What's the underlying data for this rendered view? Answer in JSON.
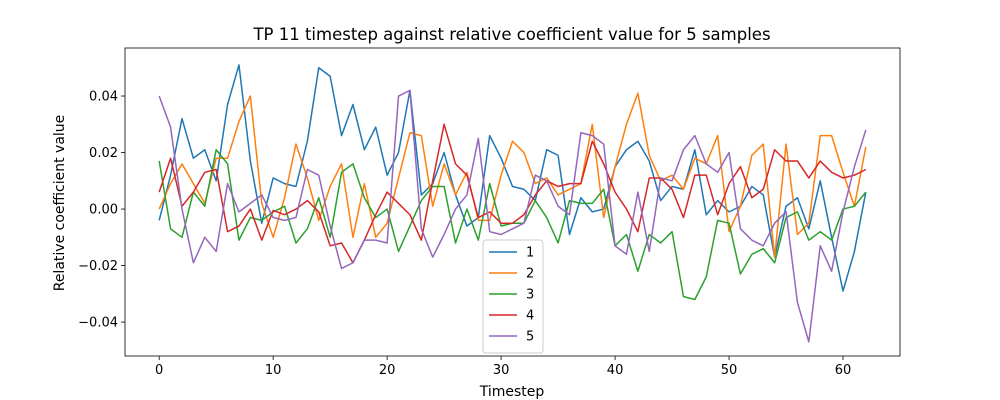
{
  "chart_data": {
    "type": "line",
    "title": "TP 11 timestep against relative coefficient value for 5 samples",
    "xlabel": "Timestep",
    "ylabel": "Relative coefficient value",
    "xlim": [
      -3,
      65
    ],
    "ylim": [
      -0.052,
      0.057
    ],
    "xticks": [
      0,
      10,
      20,
      30,
      40,
      50,
      60
    ],
    "yticks": [
      -0.04,
      -0.02,
      0.0,
      0.02,
      0.04
    ],
    "ytick_labels": [
      "−0.04",
      "−0.02",
      "0.00",
      "0.02",
      "0.04"
    ],
    "grid": false,
    "legend_position": "lower-center",
    "x": [
      0,
      1,
      2,
      3,
      4,
      5,
      6,
      7,
      8,
      9,
      10,
      11,
      12,
      13,
      14,
      15,
      16,
      17,
      18,
      19,
      20,
      21,
      22,
      23,
      24,
      25,
      26,
      27,
      28,
      29,
      30,
      31,
      32,
      33,
      34,
      35,
      36,
      37,
      38,
      39,
      40,
      41,
      42,
      43,
      44,
      45,
      46,
      47,
      48,
      49,
      50,
      51,
      52,
      53,
      54,
      55,
      56,
      57,
      58,
      59,
      60,
      61,
      62
    ],
    "series": [
      {
        "name": "1",
        "color": "#1f77b4",
        "values": [
          -0.004,
          0.012,
          0.032,
          0.018,
          0.021,
          0.01,
          0.037,
          0.051,
          0.017,
          -0.005,
          0.011,
          0.009,
          0.008,
          0.024,
          0.05,
          0.047,
          0.026,
          0.037,
          0.021,
          0.029,
          0.012,
          0.02,
          0.042,
          0.005,
          0.009,
          0.02,
          0.005,
          -0.006,
          -0.003,
          0.026,
          0.018,
          0.008,
          0.007,
          0.003,
          0.021,
          0.019,
          -0.009,
          0.004,
          -0.001,
          0.0,
          0.015,
          0.021,
          0.024,
          0.017,
          0.003,
          0.008,
          0.007,
          0.021,
          -0.002,
          0.003,
          -0.001,
          0.001,
          0.008,
          0.005,
          -0.017,
          0.001,
          0.004,
          -0.007,
          0.01,
          -0.01,
          -0.029,
          -0.015,
          0.006
        ]
      },
      {
        "name": "2",
        "color": "#ff7f0e",
        "values": [
          0.0,
          0.009,
          0.016,
          0.009,
          0.002,
          0.018,
          0.018,
          0.031,
          0.04,
          0.002,
          -0.01,
          0.004,
          0.023,
          0.011,
          -0.004,
          0.008,
          0.016,
          -0.01,
          0.009,
          -0.01,
          -0.005,
          0.011,
          0.027,
          0.026,
          0.001,
          0.016,
          0.005,
          0.013,
          -0.004,
          -0.004,
          0.012,
          0.024,
          0.02,
          0.009,
          0.011,
          0.005,
          0.007,
          0.009,
          0.03,
          -0.003,
          0.015,
          0.03,
          0.041,
          0.019,
          0.01,
          0.012,
          0.007,
          0.018,
          0.016,
          0.026,
          -0.008,
          0.001,
          0.019,
          0.023,
          -0.017,
          0.023,
          -0.009,
          -0.005,
          0.026,
          0.026,
          0.013,
          0.001,
          0.022
        ]
      },
      {
        "name": "3",
        "color": "#2ca02c",
        "values": [
          0.017,
          -0.007,
          -0.01,
          0.006,
          0.001,
          0.021,
          0.016,
          -0.011,
          -0.003,
          -0.004,
          -0.001,
          0.001,
          -0.012,
          -0.007,
          0.004,
          -0.01,
          0.013,
          0.016,
          0.004,
          -0.003,
          0.0,
          -0.015,
          -0.006,
          0.003,
          0.008,
          0.008,
          -0.012,
          0.0,
          -0.011,
          0.009,
          -0.006,
          -0.005,
          -0.005,
          0.003,
          -0.003,
          -0.012,
          0.003,
          0.002,
          0.002,
          0.007,
          -0.013,
          -0.009,
          -0.022,
          -0.009,
          -0.012,
          -0.008,
          -0.031,
          -0.032,
          -0.024,
          -0.004,
          -0.005,
          -0.023,
          -0.016,
          -0.014,
          -0.019,
          -0.003,
          -0.001,
          -0.011,
          -0.008,
          -0.011,
          0.0,
          0.001,
          0.006
        ]
      },
      {
        "name": "4",
        "color": "#d62728",
        "values": [
          0.006,
          0.018,
          0.001,
          0.006,
          0.013,
          0.014,
          -0.008,
          -0.006,
          0.0,
          -0.011,
          -0.0005,
          -0.002,
          0.0,
          0.003,
          -0.001,
          -0.013,
          -0.012,
          -0.019,
          -0.011,
          -0.002,
          0.006,
          0.002,
          -0.002,
          -0.011,
          0.01,
          0.03,
          0.016,
          0.012,
          -0.003,
          -0.001,
          -0.005,
          -0.005,
          -0.002,
          0.005,
          0.01,
          0.008,
          0.009,
          0.009,
          0.024,
          0.016,
          0.006,
          0.0,
          -0.008,
          0.011,
          0.011,
          0.007,
          -0.003,
          0.012,
          0.012,
          -0.002,
          0.009,
          0.015,
          0.004,
          0.007,
          0.021,
          0.017,
          0.017,
          0.011,
          0.017,
          0.013,
          0.011,
          0.012,
          0.014
        ]
      },
      {
        "name": "5",
        "color": "#9467bd",
        "values": [
          0.04,
          0.029,
          0.0,
          -0.019,
          -0.01,
          -0.015,
          0.009,
          -0.001,
          0.002,
          0.005,
          -0.003,
          -0.004,
          -0.003,
          0.014,
          0.012,
          -0.006,
          -0.021,
          -0.019,
          -0.011,
          -0.011,
          -0.012,
          0.04,
          0.042,
          -0.007,
          -0.017,
          -0.009,
          0.0,
          0.005,
          0.025,
          -0.008,
          -0.009,
          -0.007,
          -0.005,
          0.012,
          0.01,
          0.001,
          -0.002,
          0.027,
          0.026,
          0.023,
          -0.013,
          -0.016,
          0.006,
          -0.015,
          0.011,
          0.01,
          0.021,
          0.026,
          0.016,
          0.013,
          0.02,
          -0.007,
          -0.011,
          -0.013,
          -0.005,
          -0.001,
          -0.033,
          -0.047,
          -0.013,
          -0.022,
          -0.001,
          0.015,
          0.028
        ]
      }
    ]
  }
}
